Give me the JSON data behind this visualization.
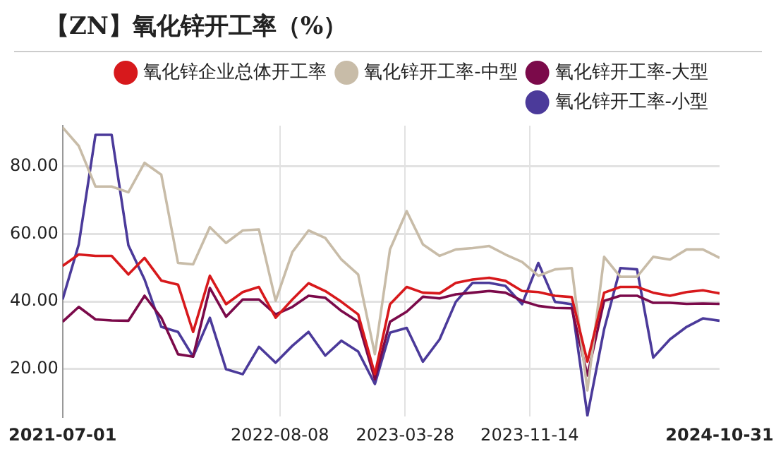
{
  "chart_data": {
    "type": "line",
    "title": "【ZN】氧化锌开工率（%）",
    "x": [
      "2021-07-01",
      "2021-07-31",
      "2021-08-31",
      "2021-09-30",
      "2021-10-31",
      "2021-11-30",
      "2021-12-31",
      "2022-01-31",
      "2022-02-28",
      "2022-03-31",
      "2022-04-30",
      "2022-05-31",
      "2022-06-30",
      "2022-07-31",
      "2022-08-31",
      "2022-09-30",
      "2022-10-31",
      "2022-11-30",
      "2022-12-31",
      "2023-01-31",
      "2023-02-28",
      "2023-03-31",
      "2023-04-30",
      "2023-05-31",
      "2023-06-30",
      "2023-07-31",
      "2023-08-31",
      "2023-09-30",
      "2023-10-31",
      "2023-11-30",
      "2023-12-31",
      "2024-01-31",
      "2024-02-29",
      "2024-03-31",
      "2024-04-30",
      "2024-05-31",
      "2024-06-30",
      "2024-07-31",
      "2024-08-31",
      "2024-09-30",
      "2024-10-31"
    ],
    "series": [
      {
        "name": "氧化锌企业总体开工率",
        "color": "#d7191c",
        "values": [
          50.5,
          53.9,
          53.5,
          53.5,
          48,
          52.9,
          46.2,
          45,
          31,
          47.6,
          39.2,
          42.8,
          44.3,
          35.2,
          40.6,
          45.4,
          43.1,
          39.9,
          36.2,
          18.5,
          39.2,
          44.3,
          42.6,
          42.4,
          45.5,
          46.5,
          47,
          46.1,
          43.1,
          42.8,
          41.7,
          41.3,
          22.2,
          42.6,
          44.3,
          44.3,
          42.6,
          41.7,
          42.8,
          43.3,
          42.4
        ]
      },
      {
        "name": "氧化锌开工率-中型",
        "color": "#c8bca8",
        "values": [
          91.5,
          86,
          74,
          74,
          72.3,
          81,
          77.5,
          51.4,
          51,
          62,
          57.3,
          61,
          61.3,
          40.2,
          54.6,
          61,
          58.8,
          52.4,
          48,
          24.4,
          55.4,
          66.7,
          56.9,
          53.5,
          55.4,
          55.8,
          56.4,
          53.9,
          51.7,
          47.6,
          49.5,
          49.9,
          13.7,
          53.2,
          47.3,
          47.3,
          53.2,
          52.4,
          55.4,
          55.4,
          52.9
        ]
      },
      {
        "name": "氧化锌开工率-大型",
        "color": "#7b0a4a",
        "values": [
          34,
          38.4,
          34.7,
          34.4,
          34.3,
          41.7,
          35.2,
          24.4,
          23.7,
          44,
          35.5,
          40.6,
          40.6,
          36.2,
          38.4,
          41.7,
          41.1,
          37.2,
          34,
          17,
          34,
          37,
          41.4,
          40.9,
          42.1,
          42.6,
          43.1,
          42.6,
          40.2,
          38.7,
          38.1,
          38,
          18.1,
          40.2,
          41.7,
          41.7,
          39.6,
          39.6,
          39.3,
          39.4,
          39.3
        ]
      },
      {
        "name": "氧化锌开工率-小型",
        "color": "#4b3a9a",
        "values": [
          40.6,
          56.9,
          89.3,
          89.3,
          56.6,
          46.5,
          32.5,
          31,
          23.7,
          35.2,
          20,
          18.5,
          26.6,
          21.9,
          26.9,
          31,
          24,
          28.4,
          25.2,
          15.6,
          30.8,
          32.2,
          22.2,
          28.8,
          39.9,
          45.5,
          45.5,
          44.6,
          39.2,
          51.4,
          39.9,
          39.2,
          6.3,
          31.8,
          49.9,
          49.5,
          23.4,
          28.8,
          32.5,
          35,
          34.3
        ]
      }
    ],
    "xlim": [
      "2021-07-01",
      "2024-10-31"
    ],
    "xticks": [
      "2021-07-01",
      "2022-08-08",
      "2023-03-28",
      "2023-11-14",
      "2024-10-31"
    ],
    "ylim": [
      6,
      92
    ],
    "yticks": [
      {
        "value": 20,
        "label": "20.00"
      },
      {
        "value": 40,
        "label": "40.00"
      },
      {
        "value": 60,
        "label": "60.00"
      },
      {
        "value": 80,
        "label": "80.00"
      }
    ],
    "grid": true,
    "legend": "top right",
    "marker": "none",
    "line_style": "solid"
  }
}
